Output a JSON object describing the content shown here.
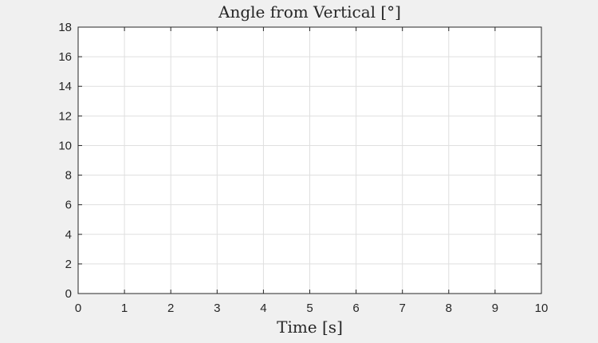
{
  "chart_data": {
    "type": "line",
    "title": "Angle from Vertical [°]",
    "xlabel": "Time [s]",
    "ylabel": "",
    "xlim": [
      0,
      10
    ],
    "ylim": [
      0,
      18
    ],
    "xticks": [
      "0",
      "1",
      "2",
      "3",
      "4",
      "5",
      "6",
      "7",
      "8",
      "9",
      "10"
    ],
    "yticks": [
      "0",
      "2",
      "4",
      "6",
      "8",
      "10",
      "12",
      "14",
      "16",
      "18"
    ],
    "grid": true,
    "series": []
  }
}
